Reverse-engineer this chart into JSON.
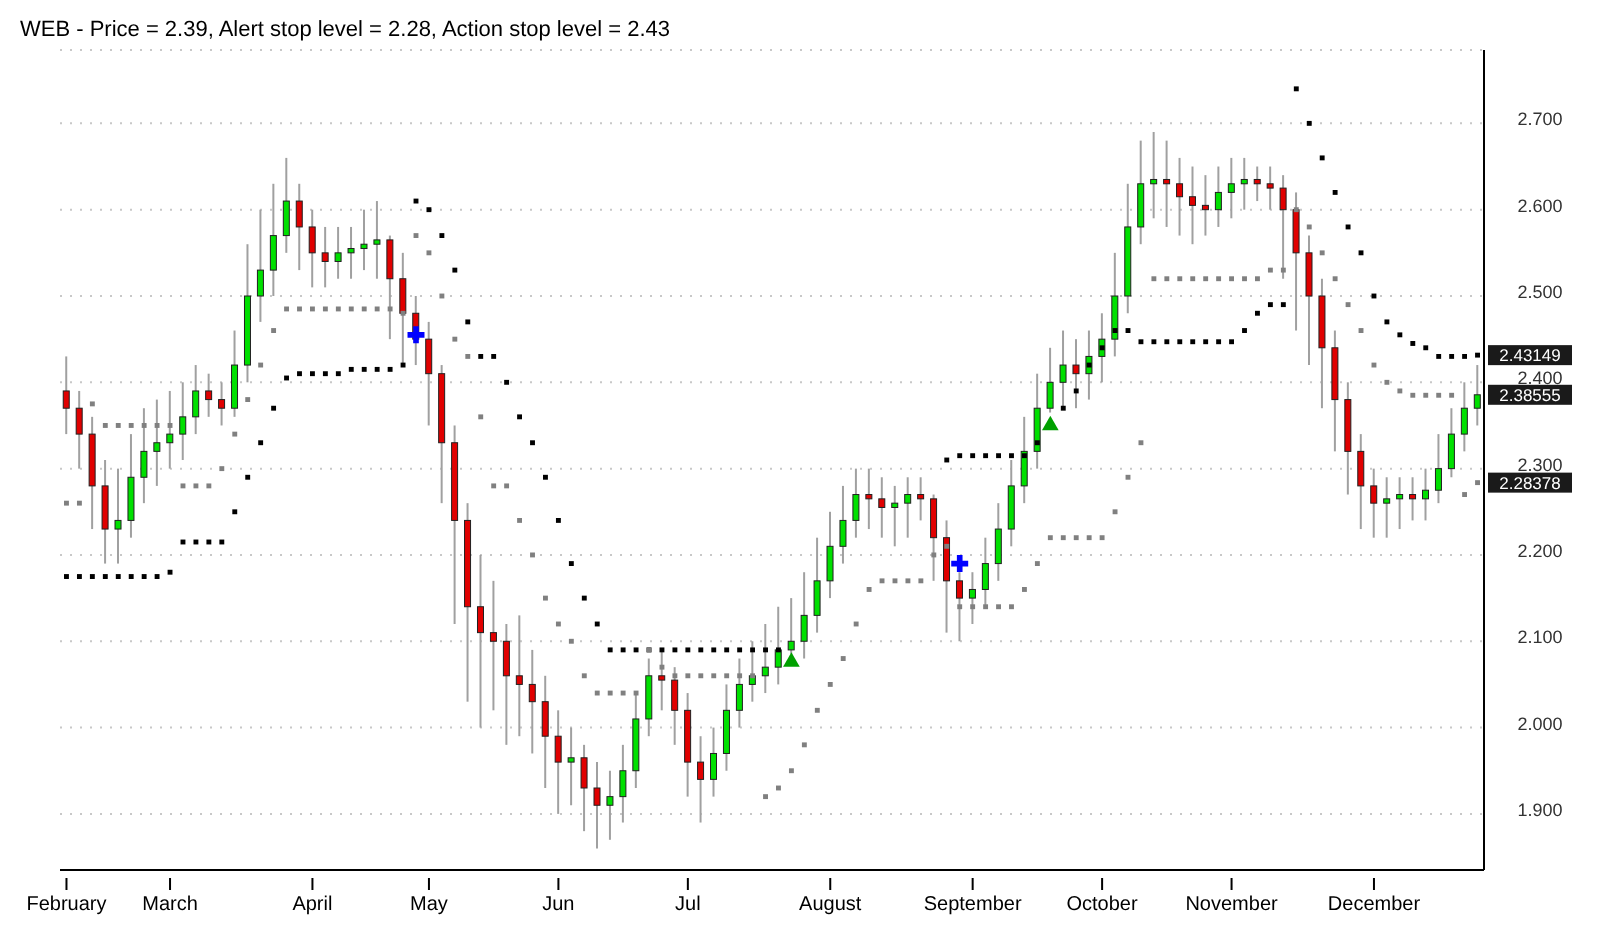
{
  "chart_data": {
    "type": "candlestick",
    "title": "WEB - Price = 2.39, Alert stop level = 2.28, Action stop level = 2.43",
    "categories": [
      "February",
      null,
      null,
      null,
      null,
      null,
      null,
      null,
      "March",
      null,
      null,
      null,
      null,
      null,
      null,
      null,
      null,
      null,
      null,
      "April",
      null,
      null,
      null,
      null,
      null,
      null,
      null,
      null,
      "May",
      null,
      null,
      null,
      null,
      null,
      null,
      null,
      null,
      null,
      "Jun",
      null,
      null,
      null,
      null,
      null,
      null,
      null,
      null,
      null,
      "Jul",
      null,
      null,
      null,
      null,
      null,
      null,
      null,
      null,
      null,
      null,
      "August",
      null,
      null,
      null,
      null,
      null,
      null,
      null,
      null,
      null,
      null,
      "September",
      null,
      null,
      null,
      null,
      null,
      null,
      null,
      null,
      null,
      "October",
      null,
      null,
      null,
      null,
      null,
      null,
      null,
      null,
      null,
      "November",
      null,
      null,
      null,
      null,
      null,
      null,
      null,
      null,
      null,
      null,
      "December",
      null,
      null,
      null,
      null,
      null,
      null,
      null,
      null
    ],
    "ohlc": [
      [
        2.39,
        2.43,
        2.34,
        2.37
      ],
      [
        2.37,
        2.39,
        2.3,
        2.34
      ],
      [
        2.34,
        2.36,
        2.23,
        2.28
      ],
      [
        2.28,
        2.31,
        2.19,
        2.23
      ],
      [
        2.23,
        2.3,
        2.19,
        2.24
      ],
      [
        2.24,
        2.34,
        2.22,
        2.29
      ],
      [
        2.29,
        2.37,
        2.26,
        2.32
      ],
      [
        2.32,
        2.38,
        2.28,
        2.33
      ],
      [
        2.33,
        2.39,
        2.3,
        2.34
      ],
      [
        2.34,
        2.4,
        2.31,
        2.36
      ],
      [
        2.36,
        2.42,
        2.34,
        2.39
      ],
      [
        2.39,
        2.41,
        2.36,
        2.38
      ],
      [
        2.38,
        2.4,
        2.35,
        2.37
      ],
      [
        2.37,
        2.46,
        2.36,
        2.42
      ],
      [
        2.42,
        2.56,
        2.4,
        2.5
      ],
      [
        2.5,
        2.6,
        2.47,
        2.53
      ],
      [
        2.53,
        2.63,
        2.5,
        2.57
      ],
      [
        2.57,
        2.66,
        2.55,
        2.61
      ],
      [
        2.61,
        2.63,
        2.53,
        2.58
      ],
      [
        2.58,
        2.6,
        2.51,
        2.55
      ],
      [
        2.55,
        2.58,
        2.51,
        2.54
      ],
      [
        2.54,
        2.58,
        2.52,
        2.55
      ],
      [
        2.55,
        2.58,
        2.52,
        2.555
      ],
      [
        2.555,
        2.6,
        2.53,
        2.56
      ],
      [
        2.56,
        2.61,
        2.52,
        2.565
      ],
      [
        2.565,
        2.57,
        2.45,
        2.52
      ],
      [
        2.52,
        2.55,
        2.42,
        2.48
      ],
      [
        2.48,
        2.5,
        2.42,
        2.45
      ],
      [
        2.45,
        2.47,
        2.35,
        2.41
      ],
      [
        2.41,
        2.42,
        2.26,
        2.33
      ],
      [
        2.33,
        2.35,
        2.12,
        2.24
      ],
      [
        2.24,
        2.26,
        2.03,
        2.14
      ],
      [
        2.14,
        2.2,
        2.0,
        2.11
      ],
      [
        2.11,
        2.17,
        2.02,
        2.1
      ],
      [
        2.1,
        2.12,
        1.98,
        2.06
      ],
      [
        2.06,
        2.13,
        1.99,
        2.05
      ],
      [
        2.05,
        2.09,
        1.97,
        2.03
      ],
      [
        2.03,
        2.06,
        1.93,
        1.99
      ],
      [
        1.99,
        2.02,
        1.9,
        1.96
      ],
      [
        1.96,
        2.0,
        1.91,
        1.965
      ],
      [
        1.965,
        1.98,
        1.88,
        1.93
      ],
      [
        1.93,
        1.96,
        1.86,
        1.91
      ],
      [
        1.91,
        1.95,
        1.87,
        1.92
      ],
      [
        1.92,
        1.98,
        1.89,
        1.95
      ],
      [
        1.95,
        2.04,
        1.93,
        2.01
      ],
      [
        2.01,
        2.08,
        1.99,
        2.06
      ],
      [
        2.06,
        2.09,
        2.02,
        2.055
      ],
      [
        2.055,
        2.07,
        1.98,
        2.02
      ],
      [
        2.02,
        2.04,
        1.92,
        1.96
      ],
      [
        1.96,
        1.99,
        1.89,
        1.94
      ],
      [
        1.94,
        2.0,
        1.92,
        1.97
      ],
      [
        1.97,
        2.05,
        1.95,
        2.02
      ],
      [
        2.02,
        2.08,
        2.0,
        2.05
      ],
      [
        2.05,
        2.1,
        2.03,
        2.06
      ],
      [
        2.06,
        2.12,
        2.04,
        2.07
      ],
      [
        2.07,
        2.14,
        2.05,
        2.09
      ],
      [
        2.09,
        2.15,
        2.085,
        2.1
      ],
      [
        2.1,
        2.18,
        2.08,
        2.13
      ],
      [
        2.13,
        2.22,
        2.11,
        2.17
      ],
      [
        2.17,
        2.25,
        2.15,
        2.21
      ],
      [
        2.21,
        2.28,
        2.19,
        2.24
      ],
      [
        2.24,
        2.3,
        2.22,
        2.27
      ],
      [
        2.27,
        2.3,
        2.23,
        2.265
      ],
      [
        2.265,
        2.29,
        2.22,
        2.255
      ],
      [
        2.255,
        2.28,
        2.21,
        2.26
      ],
      [
        2.26,
        2.29,
        2.22,
        2.27
      ],
      [
        2.27,
        2.29,
        2.24,
        2.265
      ],
      [
        2.265,
        2.27,
        2.17,
        2.22
      ],
      [
        2.22,
        2.24,
        2.11,
        2.17
      ],
      [
        2.17,
        2.18,
        2.1,
        2.15
      ],
      [
        2.15,
        2.18,
        2.12,
        2.16
      ],
      [
        2.16,
        2.22,
        2.14,
        2.19
      ],
      [
        2.19,
        2.26,
        2.17,
        2.23
      ],
      [
        2.23,
        2.31,
        2.21,
        2.28
      ],
      [
        2.28,
        2.36,
        2.26,
        2.32
      ],
      [
        2.32,
        2.41,
        2.3,
        2.37
      ],
      [
        2.37,
        2.44,
        2.365,
        2.4
      ],
      [
        2.4,
        2.46,
        2.37,
        2.42
      ],
      [
        2.42,
        2.45,
        2.37,
        2.41
      ],
      [
        2.41,
        2.46,
        2.38,
        2.43
      ],
      [
        2.43,
        2.48,
        2.4,
        2.45
      ],
      [
        2.45,
        2.55,
        2.43,
        2.5
      ],
      [
        2.5,
        2.63,
        2.48,
        2.58
      ],
      [
        2.58,
        2.68,
        2.56,
        2.63
      ],
      [
        2.63,
        2.69,
        2.59,
        2.635
      ],
      [
        2.635,
        2.68,
        2.58,
        2.63
      ],
      [
        2.63,
        2.66,
        2.57,
        2.615
      ],
      [
        2.615,
        2.65,
        2.56,
        2.605
      ],
      [
        2.605,
        2.64,
        2.57,
        2.6
      ],
      [
        2.6,
        2.65,
        2.58,
        2.62
      ],
      [
        2.62,
        2.66,
        2.59,
        2.63
      ],
      [
        2.63,
        2.66,
        2.6,
        2.635
      ],
      [
        2.635,
        2.65,
        2.61,
        2.63
      ],
      [
        2.63,
        2.65,
        2.6,
        2.625
      ],
      [
        2.625,
        2.64,
        2.52,
        2.6
      ],
      [
        2.6,
        2.62,
        2.46,
        2.55
      ],
      [
        2.55,
        2.57,
        2.42,
        2.5
      ],
      [
        2.5,
        2.52,
        2.37,
        2.44
      ],
      [
        2.44,
        2.46,
        2.32,
        2.38
      ],
      [
        2.38,
        2.4,
        2.27,
        2.32
      ],
      [
        2.32,
        2.34,
        2.23,
        2.28
      ],
      [
        2.28,
        2.3,
        2.22,
        2.26
      ],
      [
        2.26,
        2.29,
        2.22,
        2.265
      ],
      [
        2.265,
        2.29,
        2.23,
        2.27
      ],
      [
        2.27,
        2.29,
        2.24,
        2.265
      ],
      [
        2.265,
        2.3,
        2.24,
        2.275
      ],
      [
        2.275,
        2.34,
        2.26,
        2.3
      ],
      [
        2.3,
        2.37,
        2.29,
        2.34
      ],
      [
        2.34,
        2.4,
        2.32,
        2.37
      ],
      [
        2.37,
        2.42,
        2.35,
        2.38555
      ]
    ],
    "series": [
      {
        "type": "scatter",
        "marker": "square",
        "color": "#000000",
        "values": [
          2.175,
          2.175,
          2.175,
          2.175,
          2.175,
          2.175,
          2.175,
          2.175,
          2.18,
          2.215,
          2.215,
          2.215,
          2.215,
          2.25,
          2.29,
          2.33,
          2.37,
          2.405,
          2.41,
          2.41,
          2.41,
          2.41,
          2.415,
          2.415,
          2.415,
          2.415,
          2.42,
          2.61,
          2.6,
          2.57,
          2.53,
          2.47,
          2.43,
          2.43,
          2.4,
          2.36,
          2.33,
          2.29,
          2.24,
          2.19,
          2.15,
          2.12,
          2.09,
          2.09,
          2.09,
          2.09,
          2.09,
          2.09,
          2.09,
          2.09,
          2.09,
          2.09,
          2.09,
          2.09,
          2.09,
          2.09,
          null,
          null,
          null,
          null,
          null,
          null,
          null,
          null,
          null,
          null,
          null,
          null,
          2.31,
          2.315,
          2.315,
          2.315,
          2.315,
          2.315,
          2.315,
          2.33,
          null,
          2.37,
          2.39,
          2.42,
          2.44,
          2.46,
          2.46,
          2.447,
          2.447,
          2.447,
          2.447,
          2.447,
          2.447,
          2.447,
          2.447,
          2.46,
          2.48,
          2.49,
          2.49,
          2.74,
          2.7,
          2.66,
          2.62,
          2.58,
          2.55,
          2.5,
          2.47,
          2.455,
          2.445,
          2.44,
          2.43,
          2.43,
          2.43,
          2.43149
        ],
        "value_labels": [
          null,
          null,
          null,
          null,
          null,
          null,
          null,
          null,
          null,
          null,
          null,
          null,
          null,
          null,
          null,
          null,
          null,
          null,
          null,
          null,
          null,
          null,
          null,
          null,
          null,
          null,
          null,
          null,
          null,
          null,
          null,
          null,
          null,
          null,
          null,
          null,
          null,
          null,
          null,
          null,
          null,
          null,
          null,
          null,
          null,
          null,
          null,
          null,
          null,
          null,
          null,
          null,
          null,
          null,
          null,
          null,
          null,
          null,
          null,
          null,
          null,
          null,
          null,
          null,
          null,
          null,
          null,
          null,
          null,
          null,
          null,
          null,
          null,
          null,
          null,
          null,
          null,
          null,
          null,
          null,
          null,
          null,
          null,
          null,
          null,
          null,
          null,
          null,
          null,
          null,
          null,
          null,
          null,
          null,
          null,
          null,
          null,
          null,
          null,
          null,
          null,
          null,
          null,
          null,
          null,
          null,
          null,
          null,
          null,
          "2.43149"
        ]
      },
      {
        "type": "scatter",
        "marker": "square",
        "color": "#808080",
        "values": [
          2.26,
          2.26,
          2.375,
          2.35,
          2.35,
          2.35,
          2.35,
          2.35,
          2.35,
          2.28,
          2.28,
          2.28,
          2.3,
          2.34,
          2.38,
          2.42,
          2.46,
          2.485,
          2.485,
          2.485,
          2.485,
          2.485,
          2.485,
          2.485,
          2.485,
          2.485,
          2.48,
          2.57,
          2.55,
          2.5,
          2.45,
          2.43,
          2.36,
          2.28,
          2.28,
          2.24,
          2.2,
          2.15,
          2.12,
          2.1,
          2.06,
          2.04,
          2.04,
          2.04,
          2.04,
          2.09,
          2.07,
          2.06,
          2.06,
          2.06,
          2.06,
          2.06,
          2.06,
          2.06,
          1.92,
          1.93,
          1.95,
          1.98,
          2.02,
          2.05,
          2.08,
          2.12,
          2.16,
          2.17,
          2.17,
          2.17,
          2.17,
          2.2,
          2.21,
          2.14,
          2.14,
          2.14,
          2.14,
          2.14,
          2.16,
          2.19,
          2.22,
          2.22,
          2.22,
          2.22,
          2.22,
          2.25,
          2.29,
          2.33,
          2.52,
          2.52,
          2.52,
          2.52,
          2.52,
          2.52,
          2.52,
          2.52,
          2.52,
          2.53,
          2.53,
          2.6,
          2.58,
          2.55,
          2.52,
          2.49,
          2.46,
          2.42,
          2.4,
          2.39,
          2.385,
          2.385,
          2.385,
          2.385,
          2.27,
          2.28378
        ],
        "value_labels": [
          null,
          null,
          null,
          null,
          null,
          null,
          null,
          null,
          null,
          null,
          null,
          null,
          null,
          null,
          null,
          null,
          null,
          null,
          null,
          null,
          null,
          null,
          null,
          null,
          null,
          null,
          null,
          null,
          null,
          null,
          null,
          null,
          null,
          null,
          null,
          null,
          null,
          null,
          null,
          null,
          null,
          null,
          null,
          null,
          null,
          null,
          null,
          null,
          null,
          null,
          null,
          null,
          null,
          null,
          null,
          null,
          null,
          null,
          null,
          null,
          null,
          null,
          null,
          null,
          null,
          null,
          null,
          null,
          null,
          null,
          null,
          null,
          null,
          null,
          null,
          null,
          null,
          null,
          null,
          null,
          null,
          null,
          null,
          null,
          null,
          null,
          null,
          null,
          null,
          null,
          null,
          null,
          null,
          null,
          null,
          null,
          null,
          null,
          null,
          null,
          null,
          null,
          null,
          null,
          null,
          null,
          null,
          null,
          null,
          "2.28378"
        ]
      },
      {
        "type": "scatter",
        "marker": "cross",
        "color": "#0000ff",
        "values": [
          null,
          null,
          null,
          null,
          null,
          null,
          null,
          null,
          null,
          null,
          null,
          null,
          null,
          null,
          null,
          null,
          null,
          null,
          null,
          null,
          null,
          null,
          null,
          null,
          null,
          null,
          null,
          2.455,
          null,
          null,
          null,
          null,
          null,
          null,
          null,
          null,
          null,
          null,
          null,
          null,
          null,
          null,
          null,
          null,
          null,
          null,
          null,
          null,
          null,
          null,
          null,
          null,
          null,
          null,
          null,
          null,
          null,
          null,
          null,
          null,
          null,
          null,
          null,
          null,
          null,
          null,
          null,
          null,
          null,
          2.19,
          null,
          null,
          null,
          null,
          null,
          null,
          null,
          null,
          null,
          null,
          null,
          null,
          null,
          null,
          null,
          null,
          null,
          null,
          null,
          null,
          null,
          null,
          null,
          null,
          null,
          null,
          null,
          null,
          null,
          null,
          null,
          null,
          null,
          null,
          null,
          null,
          null,
          null,
          null,
          null
        ]
      },
      {
        "type": "scatter",
        "marker": "triangle",
        "color": "#00a000",
        "values": [
          null,
          null,
          null,
          null,
          null,
          null,
          null,
          null,
          null,
          null,
          null,
          null,
          null,
          null,
          null,
          null,
          null,
          null,
          null,
          null,
          null,
          null,
          null,
          null,
          null,
          null,
          null,
          null,
          null,
          null,
          null,
          null,
          null,
          null,
          null,
          null,
          null,
          null,
          null,
          null,
          null,
          null,
          null,
          null,
          null,
          null,
          null,
          null,
          null,
          null,
          null,
          null,
          null,
          null,
          null,
          null,
          2.076,
          null,
          null,
          null,
          null,
          null,
          null,
          null,
          null,
          null,
          null,
          null,
          null,
          null,
          null,
          null,
          null,
          null,
          null,
          null,
          2.35,
          null,
          null,
          null,
          null,
          null,
          null,
          null,
          null,
          null,
          null,
          null,
          null,
          null,
          null,
          null,
          null,
          null,
          null,
          null,
          null,
          null,
          null,
          null,
          null,
          null,
          null,
          null,
          null,
          null,
          null,
          null,
          null,
          null
        ]
      }
    ],
    "ylim": [
      1.835,
      2.785
    ],
    "yticks": [
      {
        "value": 1.9,
        "label": "1.900"
      },
      {
        "value": 2.0,
        "label": "2.000"
      },
      {
        "value": 2.1,
        "label": "2.100"
      },
      {
        "value": 2.2,
        "label": "2.200"
      },
      {
        "value": 2.3,
        "label": "2.300"
      },
      {
        "value": 2.4,
        "label": "2.400"
      },
      {
        "value": 2.5,
        "label": "2.500"
      },
      {
        "value": 2.6,
        "label": "2.600"
      },
      {
        "value": 2.7,
        "label": "2.700"
      }
    ],
    "grid": "y",
    "value_labels": [
      null,
      null,
      null,
      null,
      null,
      null,
      null,
      null,
      null,
      null,
      null,
      null,
      null,
      null,
      null,
      null,
      null,
      null,
      null,
      null,
      null,
      null,
      null,
      null,
      null,
      null,
      null,
      null,
      null,
      null,
      null,
      null,
      null,
      null,
      null,
      null,
      null,
      null,
      null,
      null,
      null,
      null,
      null,
      null,
      null,
      null,
      null,
      null,
      null,
      null,
      null,
      null,
      null,
      null,
      null,
      null,
      null,
      null,
      null,
      null,
      null,
      null,
      null,
      null,
      null,
      null,
      null,
      null,
      null,
      null,
      null,
      null,
      null,
      null,
      null,
      null,
      null,
      null,
      null,
      null,
      null,
      null,
      null,
      null,
      null,
      null,
      null,
      null,
      null,
      null,
      null,
      null,
      null,
      null,
      null,
      null,
      null,
      null,
      null,
      null,
      null,
      null,
      null,
      null,
      null,
      null,
      null,
      null,
      null,
      "2.38555"
    ]
  }
}
